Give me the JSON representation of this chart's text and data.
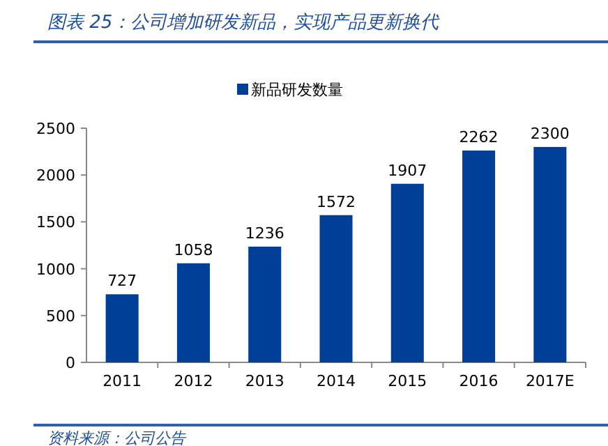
{
  "chart_data": {
    "type": "bar",
    "title": "图表 25：公司增加研发新品，实现产品更新换代",
    "categories": [
      "2011",
      "2012",
      "2013",
      "2014",
      "2015",
      "2016",
      "2017E"
    ],
    "series": [
      {
        "name": "新品研发数量",
        "color": "#003f98",
        "values": [
          727,
          1058,
          1236,
          1572,
          1907,
          2262,
          2300
        ]
      }
    ],
    "ylim": [
      0,
      2500
    ],
    "yticks": [
      0,
      500,
      1000,
      1500,
      2000,
      2500
    ],
    "data_labels": true,
    "grid": false,
    "legend": "top",
    "annotations": [
      "资料来源：公司公告"
    ]
  }
}
